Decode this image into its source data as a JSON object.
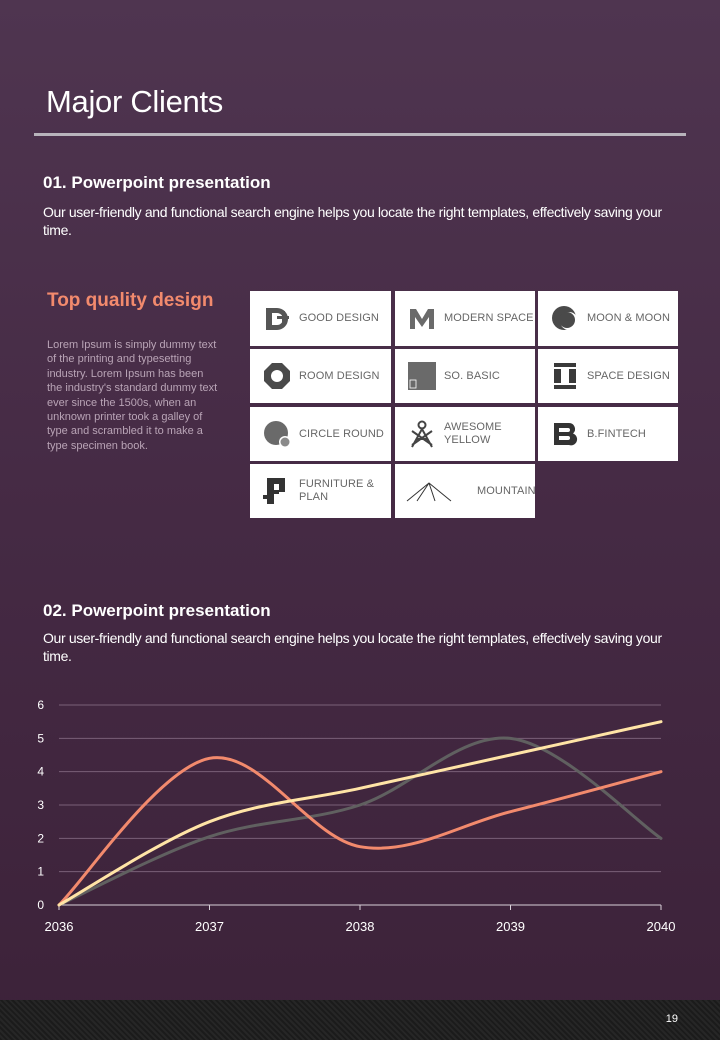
{
  "page": {
    "title": "Major Clients",
    "number": "19"
  },
  "section1": {
    "heading": "01. Powerpoint presentation",
    "body": "Our user-friendly and functional search engine helps you locate the right templates, effectively saving your time."
  },
  "top_quality": {
    "title": "Top quality design",
    "text": "Lorem Ipsum is simply dummy text of the printing and typesetting industry. Lorem Ipsum has been the industry's standard dummy text ever since the 1500s, when an unknown printer took a galley of type and scrambled it to make a type specimen book."
  },
  "clients": [
    {
      "name": "GOOD DESIGN",
      "icon": "good-design-logo-icon"
    },
    {
      "name": "MODERN SPACE",
      "icon": "modern-space-logo-icon"
    },
    {
      "name": "MOON & MOON",
      "icon": "moon-logo-icon"
    },
    {
      "name": "ROOM DESIGN",
      "icon": "room-design-logo-icon"
    },
    {
      "name": "SO. BASIC",
      "icon": "so-basic-logo-icon"
    },
    {
      "name": "SPACE DESIGN",
      "icon": "space-design-logo-icon"
    },
    {
      "name": "CIRCLE ROUND",
      "icon": "circle-round-logo-icon"
    },
    {
      "name": "AWESOME YELLOW",
      "icon": "awesome-yellow-logo-icon"
    },
    {
      "name": "B.FINTECH",
      "icon": "b-fintech-logo-icon"
    },
    {
      "name": "FURNITURE & PLAN",
      "icon": "furniture-plan-logo-icon"
    },
    {
      "name": "MOUNTAIN",
      "icon": "mountain-logo-icon"
    }
  ],
  "section2": {
    "heading": "02. Powerpoint presentation",
    "body": "Our user-friendly and functional search engine helps you locate the right templates, effectively saving your time."
  },
  "chart_data": {
    "type": "line",
    "smooth": true,
    "x": [
      "2036",
      "2037",
      "2038",
      "2039",
      "2040"
    ],
    "ylim": [
      0,
      6
    ],
    "yticks": [
      "0",
      "1",
      "2",
      "3",
      "4",
      "5",
      "6"
    ],
    "grid": true,
    "legend": "none",
    "series": [
      {
        "color": "#f28a6d",
        "values": [
          0,
          4.4,
          1.75,
          2.8,
          4
        ]
      },
      {
        "color": "#ffe4a6",
        "values": [
          0,
          2.5,
          3.5,
          4.5,
          5.5
        ]
      },
      {
        "color": "#606060",
        "values": [
          0,
          2.05,
          3.0,
          5.0,
          2.0
        ]
      }
    ]
  }
}
